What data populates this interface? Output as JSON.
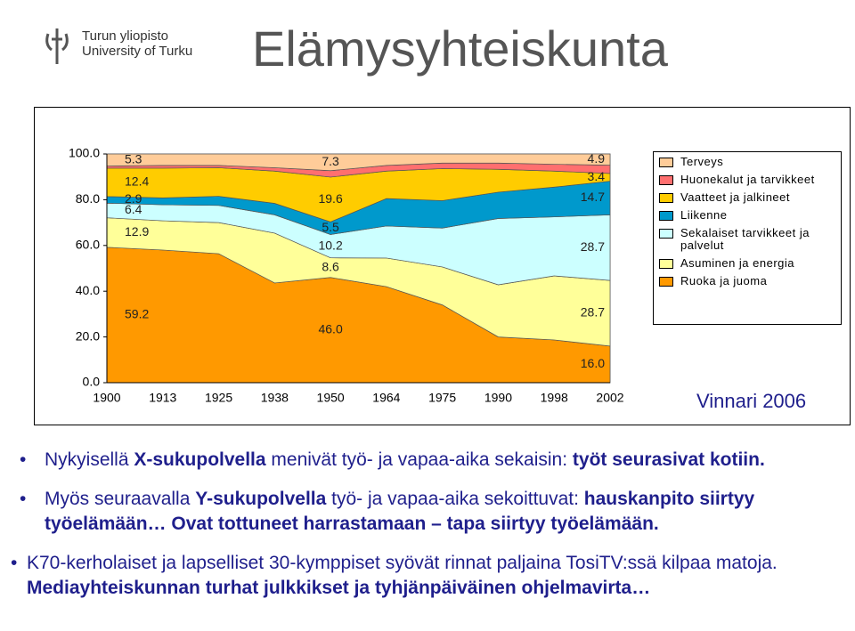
{
  "header": {
    "logo_line1": "Turun yliopisto",
    "logo_line2": "University of Turku",
    "title": "Elämysyhteiskunta"
  },
  "chart_data": {
    "type": "stacked-area",
    "categories": [
      "1900",
      "1913",
      "1925",
      "1938",
      "1950",
      "1964",
      "1975",
      "1990",
      "1998",
      "2002"
    ],
    "series": [
      {
        "name": "Terveys",
        "color": "#ffcc99",
        "values": [
          5.3,
          5,
          5,
          6,
          7.3,
          5,
          4,
          4,
          4.5,
          4.9
        ],
        "value_labels": [
          "5.3",
          null,
          null,
          null,
          "7.3",
          null,
          null,
          null,
          null,
          "4.9"
        ]
      },
      {
        "name": "Huonekalut ja tarvikkeet",
        "color": "#ff6f6f",
        "values": [
          0.9,
          1.2,
          1.0,
          1.5,
          2.8,
          2.5,
          2.4,
          2.7,
          3,
          3.6
        ],
        "value_labels": [
          null,
          null,
          null,
          null,
          null,
          null,
          null,
          null,
          null,
          null
        ]
      },
      {
        "name": "Vaatteet ja jalkineet",
        "color": "#ffcc00",
        "values": [
          12.4,
          13,
          12.5,
          14.1,
          19.6,
          12,
          14,
          10,
          7,
          3.4
        ],
        "value_labels": [
          "12.4",
          null,
          null,
          null,
          "19.6",
          null,
          null,
          null,
          null,
          "3.4"
        ]
      },
      {
        "name": "Liikenne",
        "color": "#0099cc",
        "values": [
          2.9,
          3,
          4,
          5,
          5.5,
          12,
          12,
          11.5,
          13,
          14.7
        ],
        "value_labels": [
          "2.9",
          null,
          null,
          null,
          "5.5",
          null,
          null,
          null,
          null,
          "14.7"
        ]
      },
      {
        "name": "Sekalaiset tarvikkeet ja palvelut",
        "color": "#ccffff",
        "values": [
          6.4,
          7,
          7.5,
          8,
          10.2,
          14,
          17,
          29,
          25.8,
          28.7
        ],
        "value_labels": [
          "6.4",
          null,
          null,
          null,
          "10.2",
          null,
          null,
          null,
          null,
          "28.7"
        ]
      },
      {
        "name": "Asuminen ja energia",
        "color": "#ffff99",
        "values": [
          12.9,
          12.8,
          13.6,
          21.8,
          8.6,
          12.5,
          16.6,
          22.8,
          28,
          28.7
        ],
        "value_labels": [
          "12.9",
          null,
          null,
          null,
          "8.6",
          null,
          null,
          null,
          null,
          "28.7"
        ]
      },
      {
        "name": "Ruoka ja juoma",
        "color": "#ff9900",
        "values": [
          59.2,
          58,
          56.4,
          43.6,
          46.0,
          42,
          34,
          20,
          18.7,
          16.0
        ],
        "value_labels": [
          "59.2",
          null,
          null,
          null,
          "46.0",
          null,
          null,
          null,
          null,
          "16.0"
        ]
      }
    ],
    "ylim": [
      0,
      100
    ],
    "yticks": [
      {
        "value": 0,
        "label": "0.0"
      },
      {
        "value": 20,
        "label": "20.0"
      },
      {
        "value": 40,
        "label": "40.0"
      },
      {
        "value": 60,
        "label": "60.0"
      },
      {
        "value": 80,
        "label": "80.0"
      },
      {
        "value": 100,
        "label": "100.0"
      }
    ],
    "source": "Vinnari 2006"
  },
  "bullets": [
    [
      {
        "text": "Nykyisellä ",
        "bold": false
      },
      {
        "text": "X-sukupolvella",
        "bold": true
      },
      {
        "text": " menivät työ- ja vapaa-aika sekaisin: ",
        "bold": false
      },
      {
        "text": "työt seurasivat kotiin.",
        "bold": true
      }
    ],
    [
      {
        "text": "Myös seuraavalla ",
        "bold": false
      },
      {
        "text": "Y-sukupolvella",
        "bold": true
      },
      {
        "text": " työ- ja vapaa-aika sekoittuvat: ",
        "bold": false
      },
      {
        "text": "hauskanpito siirtyy työelämään… Ovat tottuneet harrastamaan – tapa siirtyy työelämään.",
        "bold": true
      }
    ],
    [
      {
        "text": "K70-kerholaiset ja lapselliset 30-kymppiset syövät rinnat paljaina TosiTV:ssä kilpaa matoja. ",
        "bold": false
      },
      {
        "text": "Mediayhteiskunnan turhat julkkikset ja tyhjänpäiväinen ohjelmavirta…",
        "bold": true
      }
    ]
  ]
}
